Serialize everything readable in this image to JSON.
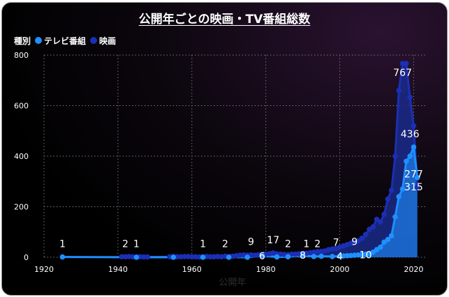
{
  "chart_data": {
    "type": "line",
    "title": "公開年ごとの映画・TV番組総数",
    "xlabel": "公開年",
    "ylabel": "",
    "xlim": [
      1920,
      2022
    ],
    "ylim": [
      0,
      800
    ],
    "xticks": [
      "1920",
      "1940",
      "1960",
      "1980",
      "2000",
      "2020"
    ],
    "yticks": [
      "0",
      "200",
      "400",
      "600",
      "800"
    ],
    "grid": true,
    "legend_placement": "top-left",
    "legend_title": "種別",
    "series": [
      {
        "name": "テレビ番組",
        "color": "#1e90ff",
        "area_color": "#1e90ff",
        "points": [
          [
            1925,
            1
          ],
          [
            1945,
            0
          ],
          [
            1955,
            0
          ],
          [
            1963,
            0
          ],
          [
            1970,
            0
          ],
          [
            1975,
            0
          ],
          [
            1979,
            6
          ],
          [
            1983,
            1
          ],
          [
            1986,
            2
          ],
          [
            1990,
            8
          ],
          [
            1993,
            3
          ],
          [
            1995,
            4
          ],
          [
            1998,
            3
          ],
          [
            2000,
            4
          ],
          [
            2001,
            5
          ],
          [
            2002,
            6
          ],
          [
            2003,
            7
          ],
          [
            2004,
            8
          ],
          [
            2005,
            9
          ],
          [
            2006,
            10
          ],
          [
            2007,
            12
          ],
          [
            2008,
            14
          ],
          [
            2009,
            20
          ],
          [
            2010,
            30
          ],
          [
            2011,
            40
          ],
          [
            2012,
            60
          ],
          [
            2013,
            70
          ],
          [
            2014,
            85
          ],
          [
            2015,
            160
          ],
          [
            2016,
            240
          ],
          [
            2017,
            270
          ],
          [
            2018,
            380
          ],
          [
            2019,
            400
          ],
          [
            2020,
            436
          ],
          [
            2021,
            315
          ]
        ]
      },
      {
        "name": "映画",
        "color": "#1b2fb5",
        "area_color": "#1a2a8a",
        "points": [
          [
            1941,
            2
          ],
          [
            1942,
            2
          ],
          [
            1943,
            3
          ],
          [
            1944,
            2
          ],
          [
            1945,
            1
          ],
          [
            1946,
            2
          ],
          [
            1947,
            1
          ],
          [
            1948,
            1
          ],
          [
            1954,
            2
          ],
          [
            1955,
            3
          ],
          [
            1956,
            2
          ],
          [
            1957,
            2
          ],
          [
            1958,
            3
          ],
          [
            1959,
            3
          ],
          [
            1960,
            2
          ],
          [
            1961,
            2
          ],
          [
            1962,
            1
          ],
          [
            1963,
            2
          ],
          [
            1964,
            3
          ],
          [
            1965,
            2
          ],
          [
            1966,
            2
          ],
          [
            1967,
            3
          ],
          [
            1968,
            2
          ],
          [
            1969,
            4
          ],
          [
            1970,
            3
          ],
          [
            1971,
            4
          ],
          [
            1972,
            6
          ],
          [
            1973,
            8
          ],
          [
            1974,
            9
          ],
          [
            1975,
            8
          ],
          [
            1976,
            9
          ],
          [
            1977,
            8
          ],
          [
            1978,
            10
          ],
          [
            1979,
            9
          ],
          [
            1980,
            12
          ],
          [
            1981,
            14
          ],
          [
            1982,
            17
          ],
          [
            1983,
            13
          ],
          [
            1984,
            12
          ],
          [
            1985,
            11
          ],
          [
            1986,
            10
          ],
          [
            1987,
            12
          ],
          [
            1988,
            12
          ],
          [
            1989,
            14
          ],
          [
            1990,
            15
          ],
          [
            1991,
            16
          ],
          [
            1992,
            18
          ],
          [
            1993,
            20
          ],
          [
            1994,
            22
          ],
          [
            1995,
            23
          ],
          [
            1996,
            25
          ],
          [
            1997,
            30
          ],
          [
            1998,
            33
          ],
          [
            1999,
            35
          ],
          [
            2000,
            40
          ],
          [
            2001,
            45
          ],
          [
            2002,
            50
          ],
          [
            2003,
            55
          ],
          [
            2004,
            60
          ],
          [
            2005,
            65
          ],
          [
            2006,
            75
          ],
          [
            2007,
            90
          ],
          [
            2008,
            110
          ],
          [
            2009,
            120
          ],
          [
            2010,
            150
          ],
          [
            2011,
            140
          ],
          [
            2012,
            170
          ],
          [
            2013,
            230
          ],
          [
            2014,
            265
          ],
          [
            2015,
            400
          ],
          [
            2016,
            660
          ],
          [
            2017,
            767
          ],
          [
            2018,
            767
          ],
          [
            2019,
            633
          ],
          [
            2020,
            520
          ],
          [
            2021,
            277
          ]
        ]
      }
    ],
    "annotations": [
      {
        "x": 1925,
        "y": 1,
        "text": "1",
        "placement": "above"
      },
      {
        "x": 1942,
        "y": 2,
        "text": "2",
        "placement": "above"
      },
      {
        "x": 1945,
        "y": 1,
        "text": "1",
        "placement": "above"
      },
      {
        "x": 1963,
        "y": 1,
        "text": "1",
        "placement": "above"
      },
      {
        "x": 1969,
        "y": 2,
        "text": "2",
        "placement": "above"
      },
      {
        "x": 1976,
        "y": 9,
        "text": "9",
        "placement": "above"
      },
      {
        "x": 1979,
        "y": 6,
        "text": "6",
        "placement": "at"
      },
      {
        "x": 1982,
        "y": 17,
        "text": "17",
        "placement": "above"
      },
      {
        "x": 1986,
        "y": 2,
        "text": "2",
        "placement": "above"
      },
      {
        "x": 1990,
        "y": 8,
        "text": "8",
        "placement": "at"
      },
      {
        "x": 1991,
        "y": 1,
        "text": "1",
        "placement": "above"
      },
      {
        "x": 1994,
        "y": 2,
        "text": "2",
        "placement": "above"
      },
      {
        "x": 1999,
        "y": 7,
        "text": "7",
        "placement": "above"
      },
      {
        "x": 2000,
        "y": 4,
        "text": "4",
        "placement": "at"
      },
      {
        "x": 2004,
        "y": 9,
        "text": "9",
        "placement": "above"
      },
      {
        "x": 2007,
        "y": 10,
        "text": "10",
        "placement": "at"
      },
      {
        "x": 2017,
        "y": 767,
        "text": "767",
        "placement": "below"
      },
      {
        "x": 2019,
        "y": 436,
        "text": "436",
        "placement": "above"
      },
      {
        "x": 2020,
        "y": 277,
        "text": "277",
        "placement": "above"
      },
      {
        "x": 2020,
        "y": 315,
        "text": "315",
        "placement": "below"
      }
    ]
  }
}
